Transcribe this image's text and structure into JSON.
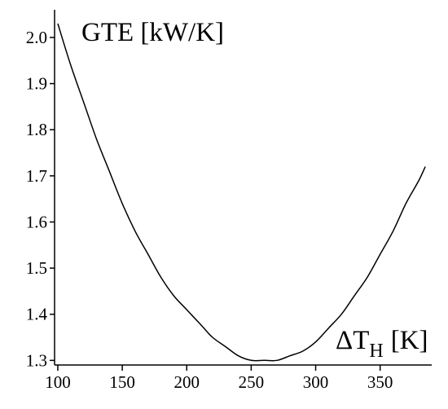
{
  "chart_data": {
    "type": "line",
    "ylabel": "GTE [kW/K]",
    "xlabel_symbol": "ΔT",
    "xlabel_subscript": "H",
    "xlabel_unit": "[K]",
    "xlim": [
      97.5,
      390
    ],
    "ylim": [
      1.29,
      2.06
    ],
    "xticks": [
      "100",
      "150",
      "200",
      "250",
      "300",
      "350"
    ],
    "yticks": [
      "1.3",
      "1.4",
      "1.5",
      "1.6",
      "1.7",
      "1.8",
      "1.9",
      "2.0"
    ],
    "series": [
      {
        "x": [
          100,
          110,
          120,
          130,
          140,
          150,
          160,
          170,
          180,
          190,
          200,
          210,
          220,
          230,
          240,
          250,
          260,
          270,
          280,
          290,
          300,
          310,
          320,
          330,
          340,
          350,
          360,
          370,
          380,
          385
        ],
        "y": [
          2.03,
          1.94,
          1.86,
          1.78,
          1.71,
          1.64,
          1.58,
          1.53,
          1.48,
          1.44,
          1.41,
          1.38,
          1.35,
          1.33,
          1.31,
          1.3,
          1.3,
          1.3,
          1.31,
          1.32,
          1.34,
          1.37,
          1.4,
          1.44,
          1.48,
          1.53,
          1.58,
          1.64,
          1.69,
          1.72
        ]
      }
    ]
  }
}
